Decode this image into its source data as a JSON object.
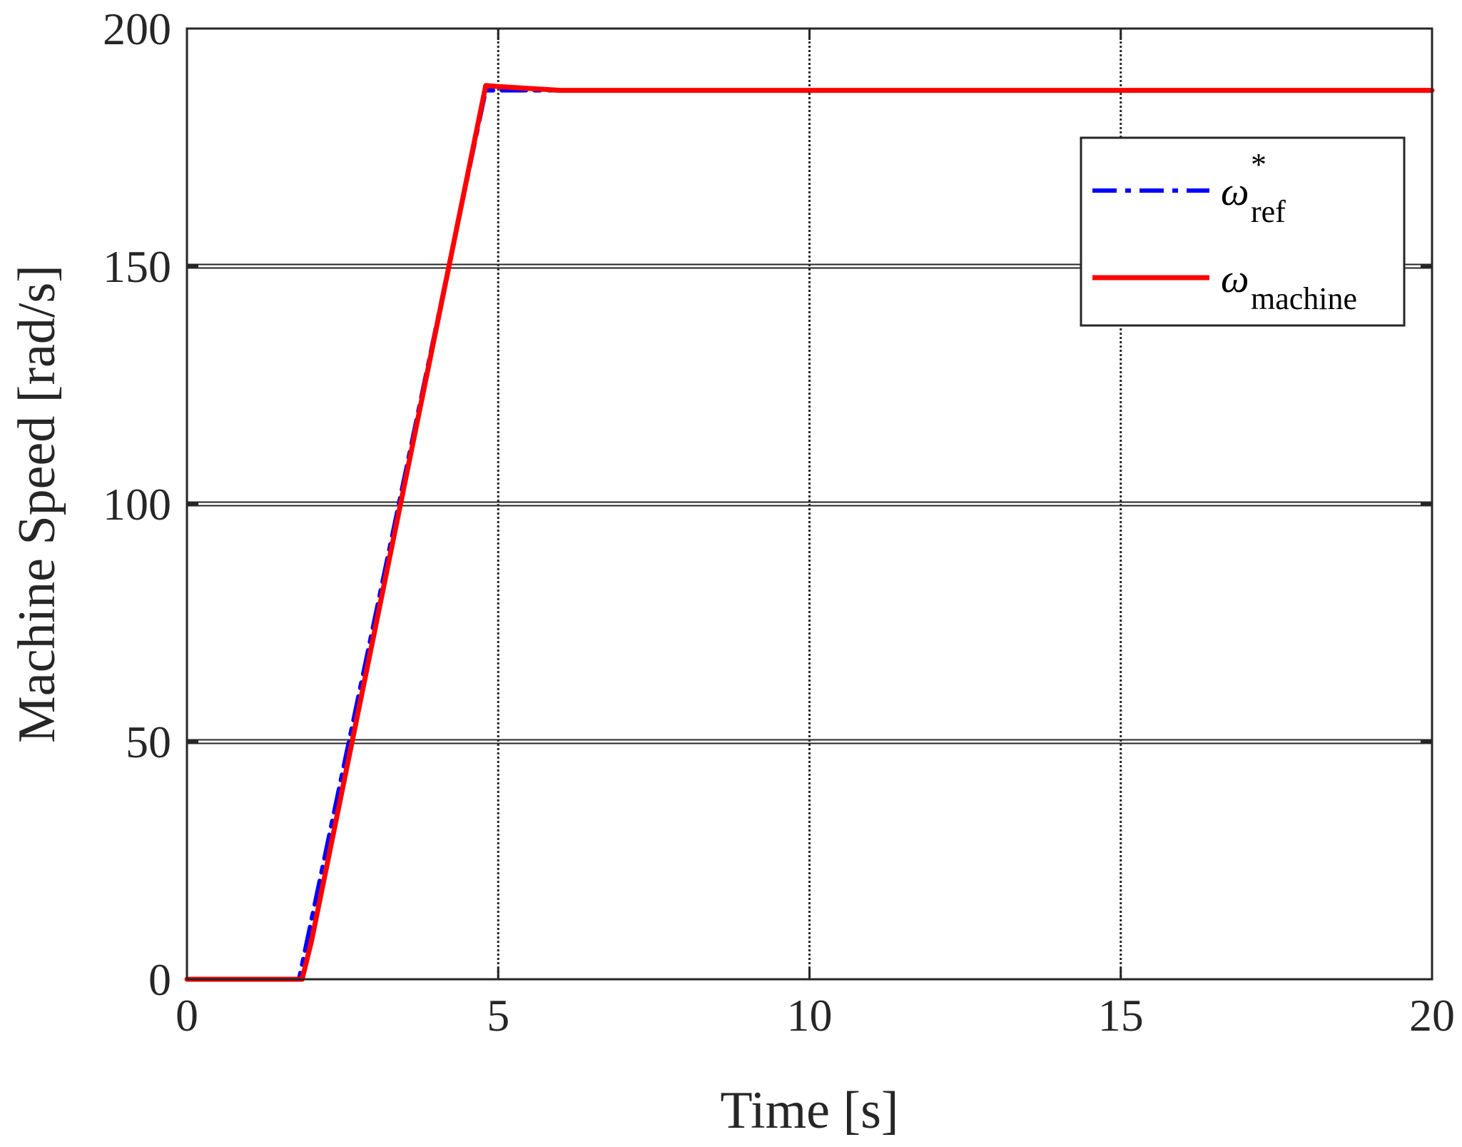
{
  "chart_data": {
    "type": "line",
    "title": "",
    "xlabel": "Time [s]",
    "ylabel": "Machine Speed [rad/s]",
    "xlim": [
      0,
      20
    ],
    "ylim": [
      0,
      200
    ],
    "xticks": [
      0,
      5,
      10,
      15,
      20
    ],
    "yticks": [
      0,
      50,
      100,
      150,
      200
    ],
    "xtick_labels": [
      "0",
      "5",
      "10",
      "15",
      "20"
    ],
    "ytick_labels": [
      "0",
      "50",
      "100",
      "150",
      "200"
    ],
    "grid": true,
    "legend_position": "top-right",
    "series": [
      {
        "name": "ω*ref",
        "legend_symbol": "ω",
        "legend_superscript": "*",
        "legend_subscript": "ref",
        "color": "#0000ff",
        "line_style": "dash-dot",
        "x": [
          0,
          1.8,
          4.8,
          20
        ],
        "y": [
          0,
          0,
          187,
          187
        ]
      },
      {
        "name": "ωmachine",
        "legend_symbol": "ω",
        "legend_superscript": "",
        "legend_subscript": "machine",
        "color": "#ff0000",
        "line_style": "solid",
        "x": [
          0,
          1.85,
          2.0,
          4.8,
          5.0,
          6.0,
          20
        ],
        "y": [
          0,
          0,
          8,
          188,
          187.8,
          187,
          187
        ]
      }
    ]
  }
}
